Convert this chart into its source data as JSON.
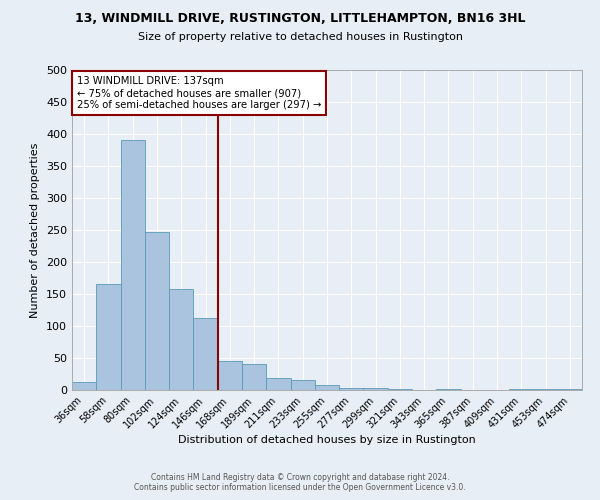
{
  "title": "13, WINDMILL DRIVE, RUSTINGTON, LITTLEHAMPTON, BN16 3HL",
  "subtitle": "Size of property relative to detached houses in Rustington",
  "xlabel": "Distribution of detached houses by size in Rustington",
  "ylabel": "Number of detached properties",
  "bar_labels": [
    "36sqm",
    "58sqm",
    "80sqm",
    "102sqm",
    "124sqm",
    "146sqm",
    "168sqm",
    "189sqm",
    "211sqm",
    "233sqm",
    "255sqm",
    "277sqm",
    "299sqm",
    "321sqm",
    "343sqm",
    "365sqm",
    "387sqm",
    "409sqm",
    "431sqm",
    "453sqm",
    "474sqm"
  ],
  "bar_values": [
    13,
    165,
    390,
    247,
    158,
    113,
    45,
    40,
    19,
    15,
    8,
    3,
    3,
    2,
    0,
    2,
    0,
    0,
    2,
    1,
    1
  ],
  "bar_color": "#aac4e0",
  "bar_edgecolor": "#5a9aba",
  "vline_x": 5.5,
  "vline_color": "#8b0000",
  "annotation_title": "13 WINDMILL DRIVE: 137sqm",
  "annotation_line1": "← 75% of detached houses are smaller (907)",
  "annotation_line2": "25% of semi-detached houses are larger (297) →",
  "annotation_box_color": "#8b0000",
  "ylim": [
    0,
    500
  ],
  "yticks": [
    0,
    50,
    100,
    150,
    200,
    250,
    300,
    350,
    400,
    450,
    500
  ],
  "background_color": "#e8eef5",
  "footer_line1": "Contains HM Land Registry data © Crown copyright and database right 2024.",
  "footer_line2": "Contains public sector information licensed under the Open Government Licence v3.0."
}
